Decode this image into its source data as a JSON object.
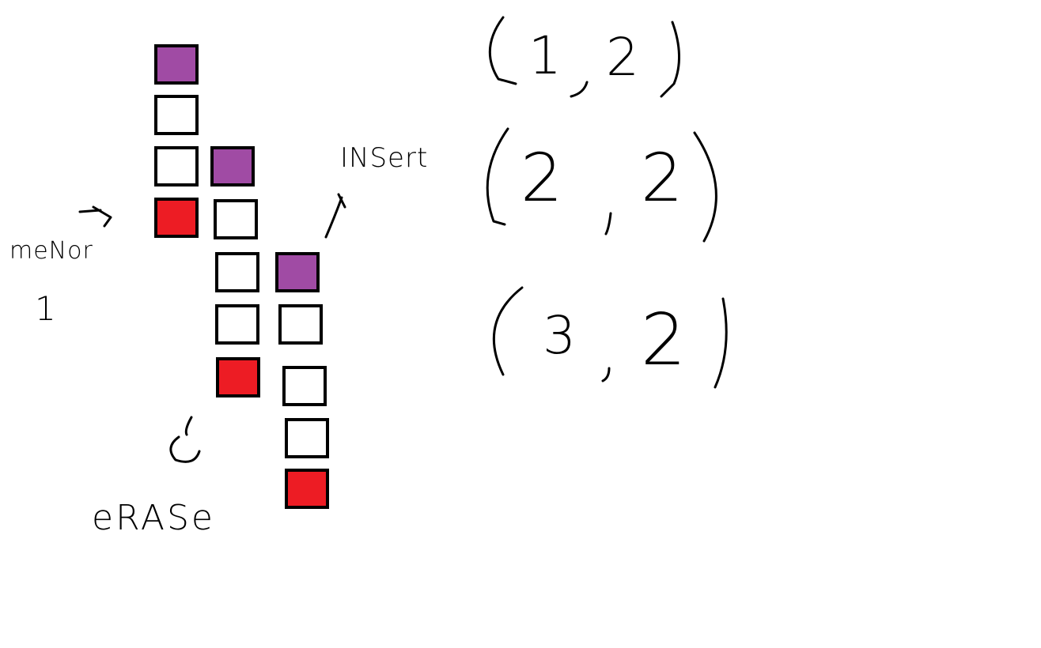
{
  "colors": {
    "head": "#a04ba4",
    "tail": "#ed1c24",
    "empty": "#ffffff",
    "ink": "#000000"
  },
  "labels": {
    "memory": "meNor",
    "memory_number": "1",
    "insert": "INSert",
    "erase": "eRASe"
  },
  "stacks": [
    {
      "cells": [
        "head",
        "empty",
        "empty",
        "tail"
      ]
    },
    {
      "cells": [
        "head",
        "empty",
        "empty",
        "empty",
        "tail"
      ]
    },
    {
      "cells": [
        "head",
        "empty",
        "empty",
        "empty",
        "tail"
      ]
    }
  ],
  "tuples": [
    {
      "a": "1",
      "b": "2"
    },
    {
      "a": "2",
      "b": "2"
    },
    {
      "a": "3",
      "b": "2"
    }
  ]
}
